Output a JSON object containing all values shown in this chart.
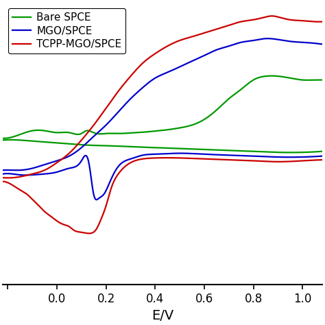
{
  "title": "",
  "xlabel": "E/V",
  "ylabel": "",
  "xlim": [
    -0.22,
    1.08
  ],
  "ylim": [
    -0.75,
    0.75
  ],
  "legend": [
    "Bare SPCE",
    "MGO/SPCE",
    "TCPP-MGO/SPCE"
  ],
  "colors": [
    "#009900",
    "#0000cc",
    "#cc0000"
  ],
  "line_width": 1.6,
  "background": "#ffffff",
  "green_upper": [
    [
      -0.22,
      0.03
    ],
    [
      -0.15,
      0.05
    ],
    [
      -0.1,
      0.07
    ],
    [
      -0.05,
      0.07
    ],
    [
      0.0,
      0.06
    ],
    [
      0.05,
      0.06
    ],
    [
      0.1,
      0.055
    ],
    [
      0.12,
      0.07
    ],
    [
      0.14,
      0.065
    ],
    [
      0.16,
      0.055
    ],
    [
      0.2,
      0.055
    ],
    [
      0.25,
      0.055
    ],
    [
      0.3,
      0.058
    ],
    [
      0.35,
      0.062
    ],
    [
      0.4,
      0.068
    ],
    [
      0.45,
      0.075
    ],
    [
      0.5,
      0.085
    ],
    [
      0.55,
      0.1
    ],
    [
      0.6,
      0.13
    ],
    [
      0.65,
      0.18
    ],
    [
      0.7,
      0.24
    ],
    [
      0.75,
      0.29
    ],
    [
      0.8,
      0.34
    ],
    [
      0.85,
      0.36
    ],
    [
      0.9,
      0.36
    ],
    [
      0.95,
      0.35
    ],
    [
      1.0,
      0.34
    ],
    [
      1.05,
      0.34
    ],
    [
      1.08,
      0.34
    ]
  ],
  "green_lower": [
    [
      -0.22,
      0.02
    ],
    [
      -0.15,
      0.02
    ],
    [
      -0.1,
      0.015
    ],
    [
      -0.05,
      0.01
    ],
    [
      0.0,
      0.005
    ],
    [
      0.05,
      0.0
    ],
    [
      0.1,
      -0.005
    ],
    [
      0.15,
      -0.008
    ],
    [
      0.2,
      -0.01
    ],
    [
      0.25,
      -0.012
    ],
    [
      0.3,
      -0.015
    ],
    [
      0.35,
      -0.018
    ],
    [
      0.4,
      -0.02
    ],
    [
      0.5,
      -0.025
    ],
    [
      0.6,
      -0.03
    ],
    [
      0.7,
      -0.035
    ],
    [
      0.8,
      -0.04
    ],
    [
      0.9,
      -0.045
    ],
    [
      1.0,
      -0.045
    ],
    [
      1.08,
      -0.04
    ]
  ],
  "blue_upper": [
    [
      -0.22,
      -0.14
    ],
    [
      -0.18,
      -0.14
    ],
    [
      -0.15,
      -0.14
    ],
    [
      -0.1,
      -0.13
    ],
    [
      -0.05,
      -0.11
    ],
    [
      0.0,
      -0.09
    ],
    [
      0.05,
      -0.065
    ],
    [
      0.1,
      -0.02
    ],
    [
      0.15,
      0.04
    ],
    [
      0.2,
      0.1
    ],
    [
      0.25,
      0.17
    ],
    [
      0.3,
      0.24
    ],
    [
      0.35,
      0.3
    ],
    [
      0.4,
      0.35
    ],
    [
      0.45,
      0.38
    ],
    [
      0.5,
      0.41
    ],
    [
      0.55,
      0.44
    ],
    [
      0.6,
      0.47
    ],
    [
      0.65,
      0.5
    ],
    [
      0.7,
      0.52
    ],
    [
      0.75,
      0.54
    ],
    [
      0.8,
      0.55
    ],
    [
      0.85,
      0.56
    ],
    [
      0.9,
      0.555
    ],
    [
      0.95,
      0.545
    ],
    [
      1.0,
      0.54
    ],
    [
      1.05,
      0.535
    ],
    [
      1.08,
      0.53
    ]
  ],
  "blue_lower": [
    [
      -0.22,
      -0.16
    ],
    [
      -0.18,
      -0.16
    ],
    [
      -0.15,
      -0.165
    ],
    [
      -0.1,
      -0.165
    ],
    [
      -0.05,
      -0.16
    ],
    [
      0.0,
      -0.15
    ],
    [
      0.05,
      -0.13
    ],
    [
      0.1,
      -0.09
    ],
    [
      0.13,
      -0.1
    ],
    [
      0.15,
      -0.27
    ],
    [
      0.17,
      -0.29
    ],
    [
      0.19,
      -0.27
    ],
    [
      0.22,
      -0.19
    ],
    [
      0.25,
      -0.12
    ],
    [
      0.3,
      -0.08
    ],
    [
      0.35,
      -0.06
    ],
    [
      0.4,
      -0.055
    ],
    [
      0.5,
      -0.05
    ],
    [
      0.6,
      -0.055
    ],
    [
      0.7,
      -0.06
    ],
    [
      0.8,
      -0.065
    ],
    [
      0.9,
      -0.07
    ],
    [
      1.0,
      -0.07
    ],
    [
      1.08,
      -0.065
    ]
  ],
  "red_upper": [
    [
      -0.22,
      -0.18
    ],
    [
      -0.18,
      -0.18
    ],
    [
      -0.15,
      -0.175
    ],
    [
      -0.1,
      -0.16
    ],
    [
      -0.05,
      -0.14
    ],
    [
      0.0,
      -0.1
    ],
    [
      0.05,
      -0.05
    ],
    [
      0.1,
      0.02
    ],
    [
      0.15,
      0.1
    ],
    [
      0.2,
      0.19
    ],
    [
      0.25,
      0.28
    ],
    [
      0.3,
      0.36
    ],
    [
      0.35,
      0.43
    ],
    [
      0.4,
      0.48
    ],
    [
      0.45,
      0.52
    ],
    [
      0.5,
      0.55
    ],
    [
      0.55,
      0.57
    ],
    [
      0.6,
      0.59
    ],
    [
      0.65,
      0.61
    ],
    [
      0.7,
      0.63
    ],
    [
      0.75,
      0.65
    ],
    [
      0.8,
      0.66
    ],
    [
      0.85,
      0.675
    ],
    [
      0.88,
      0.68
    ],
    [
      0.9,
      0.675
    ],
    [
      0.95,
      0.66
    ],
    [
      1.0,
      0.655
    ],
    [
      1.05,
      0.65
    ],
    [
      1.08,
      0.65
    ]
  ],
  "red_lower": [
    [
      -0.22,
      -0.2
    ],
    [
      -0.18,
      -0.22
    ],
    [
      -0.15,
      -0.245
    ],
    [
      -0.12,
      -0.27
    ],
    [
      -0.1,
      -0.295
    ],
    [
      -0.08,
      -0.32
    ],
    [
      -0.05,
      -0.36
    ],
    [
      -0.02,
      -0.39
    ],
    [
      0.0,
      -0.41
    ],
    [
      0.03,
      -0.43
    ],
    [
      0.05,
      -0.44
    ],
    [
      0.07,
      -0.46
    ],
    [
      0.1,
      -0.47
    ],
    [
      0.12,
      -0.475
    ],
    [
      0.14,
      -0.475
    ],
    [
      0.16,
      -0.455
    ],
    [
      0.18,
      -0.4
    ],
    [
      0.2,
      -0.33
    ],
    [
      0.22,
      -0.24
    ],
    [
      0.25,
      -0.16
    ],
    [
      0.3,
      -0.1
    ],
    [
      0.35,
      -0.08
    ],
    [
      0.4,
      -0.075
    ],
    [
      0.5,
      -0.075
    ],
    [
      0.6,
      -0.08
    ],
    [
      0.7,
      -0.085
    ],
    [
      0.8,
      -0.09
    ],
    [
      0.9,
      -0.095
    ],
    [
      1.0,
      -0.09
    ],
    [
      1.08,
      -0.085
    ]
  ]
}
